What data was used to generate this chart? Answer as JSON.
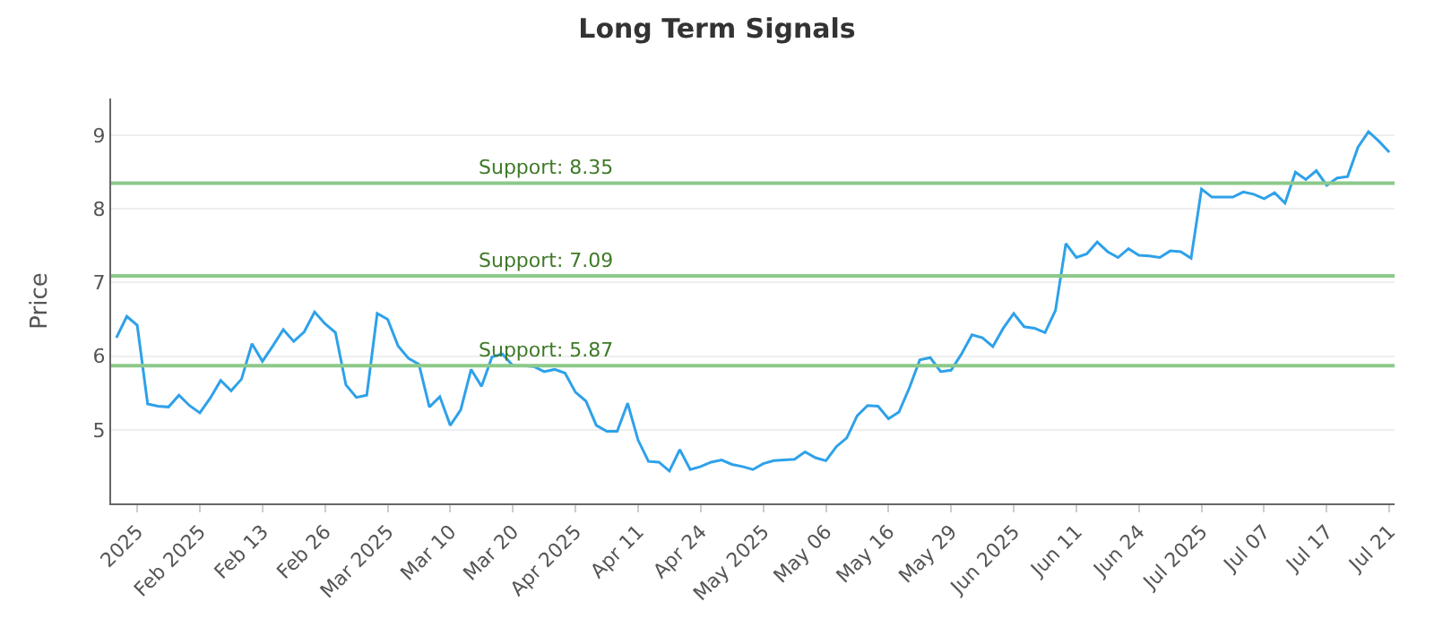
{
  "chart_data": {
    "type": "line",
    "title": "Long Term Signals",
    "ylabel": "Price",
    "categories": [
      null,
      null,
      "2025",
      null,
      null,
      null,
      null,
      null,
      "Feb 2025",
      null,
      null,
      null,
      null,
      null,
      "Feb 13",
      null,
      null,
      null,
      null,
      null,
      "Feb 26",
      null,
      null,
      null,
      null,
      null,
      "Mar 2025",
      null,
      null,
      null,
      null,
      null,
      "Mar 10",
      null,
      null,
      null,
      null,
      null,
      "Mar 20",
      null,
      null,
      null,
      null,
      null,
      "Apr 2025",
      null,
      null,
      null,
      null,
      null,
      "Apr 11",
      null,
      null,
      null,
      null,
      null,
      "Apr 24",
      null,
      null,
      null,
      null,
      null,
      "May 2025",
      null,
      null,
      null,
      null,
      null,
      "May 06",
      null,
      null,
      null,
      null,
      null,
      "May 16",
      null,
      null,
      null,
      null,
      null,
      "May 29",
      null,
      null,
      null,
      null,
      null,
      "Jun 2025",
      null,
      null,
      null,
      null,
      null,
      "Jun 11",
      null,
      null,
      null,
      null,
      null,
      "Jun 24",
      null,
      null,
      null,
      null,
      null,
      "Jul 2025",
      null,
      null,
      null,
      null,
      null,
      "Jul 07",
      null,
      null,
      null,
      null,
      null,
      "Jul 17",
      null,
      null,
      null,
      null,
      null,
      "Jul 21"
    ],
    "series": [
      {
        "color": "#2ea1ea",
        "values": [
          6.25,
          6.54,
          6.42,
          5.35,
          5.32,
          5.31,
          5.47,
          5.33,
          5.23,
          5.43,
          5.67,
          5.53,
          5.69,
          6.17,
          5.93,
          6.14,
          6.36,
          6.2,
          6.33,
          6.6,
          6.44,
          6.32,
          5.61,
          5.44,
          5.47,
          6.58,
          6.5,
          6.14,
          5.97,
          5.89,
          5.31,
          5.45,
          5.06,
          5.27,
          5.82,
          5.59,
          5.99,
          6.03,
          5.87,
          5.87,
          5.86,
          5.79,
          5.82,
          5.77,
          5.51,
          5.39,
          5.06,
          4.98,
          4.98,
          5.36,
          4.86,
          4.57,
          4.56,
          4.44,
          4.73,
          4.46,
          4.5,
          4.56,
          4.59,
          4.53,
          4.5,
          4.46,
          4.54,
          4.58,
          4.59,
          4.6,
          4.7,
          4.62,
          4.58,
          4.77,
          4.89,
          5.19,
          5.33,
          5.32,
          5.15,
          5.24,
          5.57,
          5.95,
          5.98,
          5.79,
          5.81,
          6.03,
          6.29,
          6.25,
          6.13,
          6.38,
          6.58,
          6.4,
          6.38,
          6.32,
          6.62,
          7.53,
          7.34,
          7.39,
          7.55,
          7.42,
          7.34,
          7.46,
          7.37,
          7.36,
          7.34,
          7.43,
          7.42,
          7.33,
          8.27,
          8.16,
          8.16,
          8.16,
          8.23,
          8.2,
          8.14,
          8.22,
          8.08,
          8.5,
          8.4,
          8.52,
          8.32,
          8.42,
          8.44,
          8.84,
          9.05,
          8.92,
          8.77
        ]
      }
    ],
    "ylim": [
      4,
      9.5
    ],
    "yticks": [
      5,
      6,
      7,
      8,
      9
    ],
    "grid": "y",
    "marker": "none",
    "line_style": "solid",
    "ref_lines": [
      {
        "axis": "y",
        "value": 8.35,
        "label": "Support: 8.35",
        "color": "#8cc98a"
      },
      {
        "axis": "y",
        "value": 7.09,
        "label": "Support: 7.09",
        "color": "#8cc98a"
      },
      {
        "axis": "y",
        "value": 5.87,
        "label": "Support: 5.87",
        "color": "#8cc98a"
      }
    ]
  }
}
